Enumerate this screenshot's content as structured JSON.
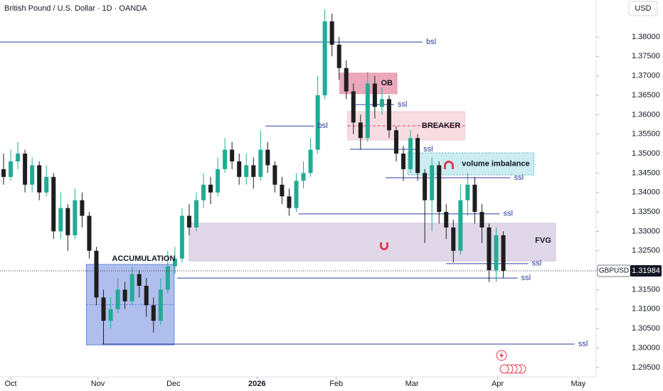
{
  "chart_data": {
    "type": "candlestick",
    "title": "British Pound / U.S. Dollar · 1D · OANDA",
    "currency": "USD",
    "symbol": "GBPUSD",
    "last_price": 1.31984,
    "up_color": "#22ab94",
    "down_color": "#1e1e1e",
    "grid": false,
    "open": [
      1.346,
      1.344,
      1.348,
      1.35,
      1.342,
      1.347,
      1.34,
      1.344,
      1.33,
      1.336,
      1.329,
      1.338,
      1.334,
      1.325,
      1.313,
      1.307,
      1.31,
      1.315,
      1.312,
      1.319,
      1.316,
      1.311,
      1.307,
      1.315,
      1.321,
      1.323,
      1.334,
      1.331,
      1.338,
      1.342,
      1.34,
      1.346,
      1.351,
      1.348,
      1.344,
      1.347,
      1.344,
      1.351,
      1.347,
      1.342,
      1.339,
      1.336,
      1.343,
      1.345,
      1.351,
      1.365,
      1.384,
      1.378,
      1.372,
      1.366,
      1.358,
      1.354,
      1.368,
      1.362,
      1.364,
      1.356,
      1.35,
      1.346,
      1.354,
      1.345,
      1.338,
      1.347,
      1.335,
      1.331,
      1.325,
      1.338,
      1.342,
      1.335,
      1.331,
      1.32,
      1.329
    ],
    "high": [
      1.35,
      1.351,
      1.353,
      1.351,
      1.349,
      1.348,
      1.347,
      1.345,
      1.34,
      1.337,
      1.341,
      1.34,
      1.335,
      1.326,
      1.315,
      1.313,
      1.318,
      1.317,
      1.321,
      1.32,
      1.318,
      1.313,
      1.318,
      1.325,
      1.326,
      1.336,
      1.337,
      1.34,
      1.345,
      1.344,
      1.349,
      1.354,
      1.353,
      1.35,
      1.35,
      1.349,
      1.356,
      1.353,
      1.348,
      1.344,
      1.341,
      1.345,
      1.348,
      1.354,
      1.37,
      1.387,
      1.386,
      1.38,
      1.374,
      1.368,
      1.36,
      1.371,
      1.37,
      1.367,
      1.365,
      1.357,
      1.352,
      1.356,
      1.355,
      1.346,
      1.349,
      1.348,
      1.337,
      1.333,
      1.342,
      1.345,
      1.344,
      1.337,
      1.332,
      1.331,
      1.33
    ],
    "low": [
      1.342,
      1.343,
      1.346,
      1.34,
      1.34,
      1.338,
      1.339,
      1.328,
      1.328,
      1.325,
      1.328,
      1.331,
      1.323,
      1.311,
      1.301,
      1.305,
      1.309,
      1.31,
      1.311,
      1.313,
      1.308,
      1.304,
      1.306,
      1.314,
      1.319,
      1.322,
      1.329,
      1.33,
      1.336,
      1.337,
      1.339,
      1.345,
      1.346,
      1.342,
      1.342,
      1.341,
      1.343,
      1.345,
      1.34,
      1.337,
      1.334,
      1.335,
      1.341,
      1.344,
      1.35,
      1.364,
      1.375,
      1.369,
      1.364,
      1.355,
      1.351,
      1.353,
      1.359,
      1.36,
      1.354,
      1.348,
      1.343,
      1.345,
      1.343,
      1.327,
      1.33,
      1.332,
      1.328,
      1.322,
      1.324,
      1.334,
      1.332,
      1.327,
      1.317,
      1.317,
      1.318
    ],
    "close": [
      1.344,
      1.348,
      1.35,
      1.342,
      1.347,
      1.34,
      1.344,
      1.33,
      1.336,
      1.329,
      1.338,
      1.334,
      1.325,
      1.313,
      1.307,
      1.31,
      1.315,
      1.312,
      1.319,
      1.316,
      1.311,
      1.307,
      1.315,
      1.321,
      1.323,
      1.334,
      1.331,
      1.338,
      1.342,
      1.34,
      1.346,
      1.351,
      1.348,
      1.344,
      1.347,
      1.344,
      1.351,
      1.347,
      1.342,
      1.339,
      1.336,
      1.343,
      1.345,
      1.351,
      1.365,
      1.384,
      1.378,
      1.372,
      1.366,
      1.358,
      1.354,
      1.368,
      1.362,
      1.364,
      1.356,
      1.35,
      1.346,
      1.354,
      1.345,
      1.338,
      1.347,
      1.335,
      1.331,
      1.325,
      1.338,
      1.342,
      1.335,
      1.331,
      1.32,
      1.329,
      1.31984
    ],
    "xlim": [
      -0.5,
      83
    ],
    "xticks": [
      {
        "value": 1,
        "label": "Oct"
      },
      {
        "value": 13.2,
        "label": "Nov"
      },
      {
        "value": 23.8,
        "label": "Dec"
      },
      {
        "value": 35.5,
        "label": "2026"
      },
      {
        "value": 46.6,
        "label": "Feb"
      },
      {
        "value": 57.2,
        "label": "Mar"
      },
      {
        "value": 69.2,
        "label": "Apr"
      },
      {
        "value": 80.5,
        "label": "May"
      }
    ],
    "ylim": [
      1.2926,
      1.3895
    ],
    "yticks": [
      {
        "value": 1.295,
        "label": "1.29500"
      },
      {
        "value": 1.3,
        "label": "1.30000"
      },
      {
        "value": 1.305,
        "label": "1.30500"
      },
      {
        "value": 1.31,
        "label": "1.31000"
      },
      {
        "value": 1.315,
        "label": "1.31500"
      },
      {
        "value": 1.32,
        "label": "1.32000"
      },
      {
        "value": 1.325,
        "label": "1.32500"
      },
      {
        "value": 1.33,
        "label": "1.33000"
      },
      {
        "value": 1.335,
        "label": "1.33500"
      },
      {
        "value": 1.34,
        "label": "1.34000"
      },
      {
        "value": 1.345,
        "label": "1.34500"
      },
      {
        "value": 1.35,
        "label": "1.35000"
      },
      {
        "value": 1.355,
        "label": "1.35500"
      },
      {
        "value": 1.36,
        "label": "1.36000"
      },
      {
        "value": 1.365,
        "label": "1.36500"
      },
      {
        "value": 1.37,
        "label": "1.37000"
      },
      {
        "value": 1.375,
        "label": "1.37500"
      },
      {
        "value": 1.38,
        "label": "1.38000"
      }
    ],
    "zones": [
      {
        "label": "ACCUMULATION",
        "x": [
          11.6,
          23.9
        ],
        "y": [
          1.3008,
          1.3215
        ],
        "color": "#a8b8ec",
        "border": "#5b7bd6"
      },
      {
        "label": "FVG",
        "x": [
          26,
          77.3
        ],
        "y": [
          1.3224,
          1.3321
        ],
        "color": "#ddd3e6",
        "border": "#c9bcd6"
      },
      {
        "label": "BREAKER",
        "x": [
          48.2,
          64.6
        ],
        "y": [
          1.3535,
          1.3608
        ],
        "color": "#f7d9df",
        "border": "#efc0ca"
      },
      {
        "label": "OB",
        "x": [
          47.1,
          55.1
        ],
        "y": [
          1.3654,
          1.3707
        ],
        "color": "#ea9fb4",
        "border": "#e08aa2"
      },
      {
        "label": "volume imbalance",
        "x": [
          56.6,
          74.3
        ],
        "y": [
          1.3445,
          1.3502
        ],
        "color": "#c6ebf0",
        "border": "#4aa7b8"
      }
    ],
    "levels": [
      {
        "label": "bsl",
        "x": [
          -0.5,
          58.7
        ],
        "y": 1.3787
      },
      {
        "label": "bsl",
        "x": [
          36.7,
          43.5
        ],
        "y": 1.3571
      },
      {
        "label": "ssl",
        "x": [
          49.3,
          54.7
        ],
        "y": 1.3626
      },
      {
        "label": "ssl",
        "x": [
          48.5,
          58.3
        ],
        "y": 1.3511
      },
      {
        "label": "ssl",
        "x": [
          53.5,
          71
        ],
        "y": 1.3438
      },
      {
        "label": "ssl",
        "x": [
          41.3,
          69.5
        ],
        "y": 1.3345
      },
      {
        "label": "ssl",
        "x": [
          62,
          73.5
        ],
        "y": 1.3217
      },
      {
        "label": "ssl",
        "x": [
          24.3,
          72
        ],
        "y": 1.318
      },
      {
        "label": "ssl",
        "x": [
          13.8,
          80
        ],
        "y": 1.301
      }
    ]
  }
}
